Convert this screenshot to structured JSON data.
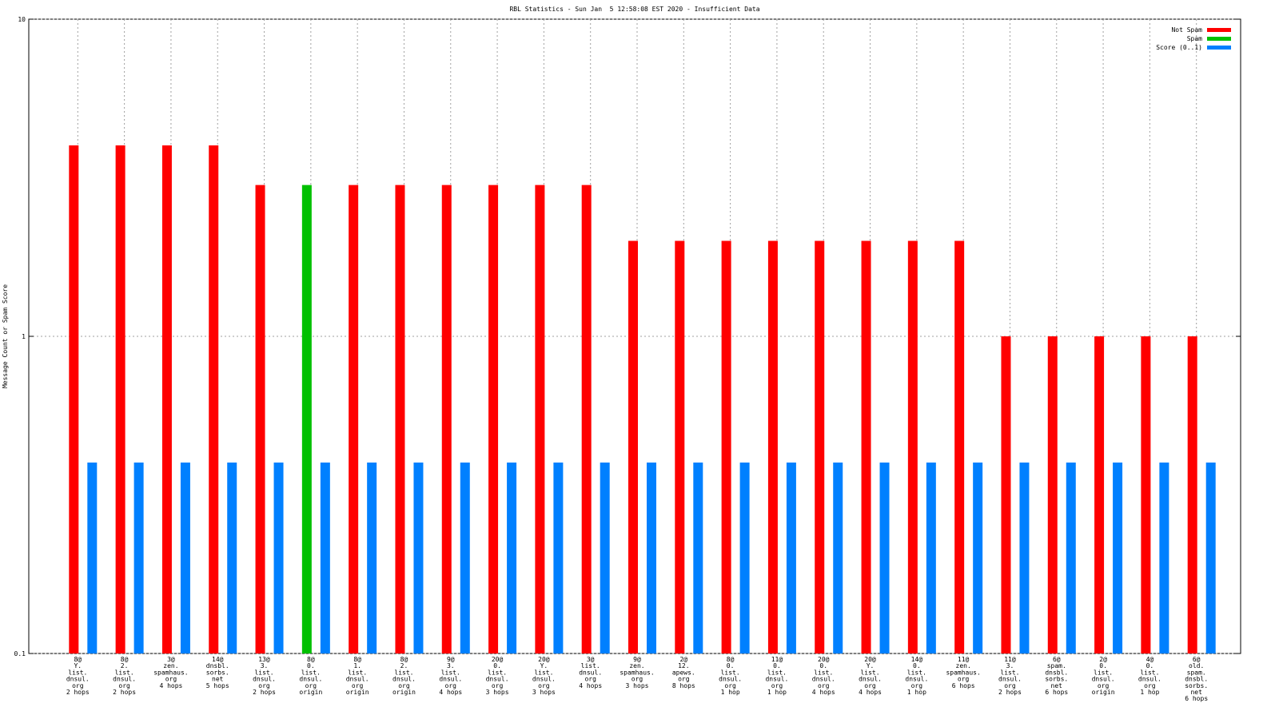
{
  "chart_data": {
    "type": "bar",
    "title": "RBL Statistics - Sun Jan  5 12:58:08 EST 2020 - Insufficient Data",
    "y_label": "Message Count or Spam Score",
    "log_scale_y": true,
    "ylim": [
      0.1,
      10
    ],
    "yticks": [
      0.1,
      1,
      10
    ],
    "grid": true,
    "legend": "top-right",
    "categories": [
      [
        "8@",
        "Y.",
        "list.",
        "dnsul.",
        "org",
        "2 hops"
      ],
      [
        "8@",
        "2.",
        "list.",
        "dnsul.",
        "org",
        "2 hops"
      ],
      [
        "3@",
        "zen.",
        "spamhaus.",
        "org",
        "4 hops"
      ],
      [
        "14@",
        "dnsbl.",
        "sorbs.",
        "net",
        "5 hops"
      ],
      [
        "13@",
        "3.",
        "list.",
        "dnsul.",
        "org",
        "2 hops"
      ],
      [
        "8@",
        "0.",
        "list.",
        "dnsul.",
        "org",
        "origin"
      ],
      [
        "8@",
        "1.",
        "list.",
        "dnsul.",
        "org",
        "origin"
      ],
      [
        "8@",
        "2.",
        "list.",
        "dnsul.",
        "org",
        "origin"
      ],
      [
        "9@",
        "3.",
        "list.",
        "dnsul.",
        "org",
        "4 hops"
      ],
      [
        "20@",
        "0.",
        "list.",
        "dnsul.",
        "org",
        "3 hops"
      ],
      [
        "20@",
        "Y.",
        "list.",
        "dnsul.",
        "org",
        "3 hops"
      ],
      [
        "3@",
        "list.",
        "dnsul.",
        "org",
        "4 hops"
      ],
      [
        "9@",
        "zen.",
        "spamhaus.",
        "org",
        "3 hops"
      ],
      [
        "2@",
        "12.",
        "apews.",
        "org",
        "8 hops"
      ],
      [
        "8@",
        "0.",
        "list.",
        "dnsul.",
        "org",
        "1 hop"
      ],
      [
        "11@",
        "0.",
        "list.",
        "dnsul.",
        "org",
        "1 hop"
      ],
      [
        "20@",
        "0.",
        "list.",
        "dnsul.",
        "org",
        "4 hops"
      ],
      [
        "20@",
        "Y.",
        "list.",
        "dnsul.",
        "org",
        "4 hops"
      ],
      [
        "14@",
        "0.",
        "list.",
        "dnsul.",
        "org",
        "1 hop"
      ],
      [
        "11@",
        "zen.",
        "spamhaus.",
        "org",
        "6 hops"
      ],
      [
        "11@",
        "3.",
        "list.",
        "dnsul.",
        "org",
        "2 hops"
      ],
      [
        "6@",
        "spam.",
        "dnsbl.",
        "sorbs.",
        "net",
        "6 hops"
      ],
      [
        "2@",
        "0.",
        "list.",
        "dnsul.",
        "org",
        "origin"
      ],
      [
        "4@",
        "0.",
        "list.",
        "dnsul.",
        "org",
        "1 hop"
      ],
      [
        "6@",
        "old.",
        "spam.",
        "dnsbl.",
        "sorbs.",
        "net",
        "6 hops"
      ]
    ],
    "series": [
      {
        "name": "Not Spam",
        "color": "#ff0000",
        "values": [
          4,
          4,
          4,
          4,
          3,
          null,
          3,
          3,
          3,
          3,
          3,
          3,
          2,
          2,
          2,
          2,
          2,
          2,
          2,
          2,
          1,
          1,
          1,
          1,
          1
        ]
      },
      {
        "name": "Spam",
        "color": "#00c000",
        "values": [
          null,
          null,
          null,
          null,
          null,
          3,
          null,
          null,
          null,
          null,
          null,
          null,
          null,
          null,
          null,
          null,
          null,
          null,
          null,
          null,
          null,
          null,
          null,
          null,
          null
        ]
      },
      {
        "name": "Score (0..1)",
        "color": "#0080ff",
        "values": [
          0.4,
          0.4,
          0.4,
          0.4,
          0.4,
          0.4,
          0.4,
          0.4,
          0.4,
          0.4,
          0.4,
          0.4,
          0.4,
          0.4,
          0.4,
          0.4,
          0.4,
          0.4,
          0.4,
          0.4,
          0.4,
          0.4,
          0.4,
          0.4,
          0.4
        ]
      }
    ]
  }
}
